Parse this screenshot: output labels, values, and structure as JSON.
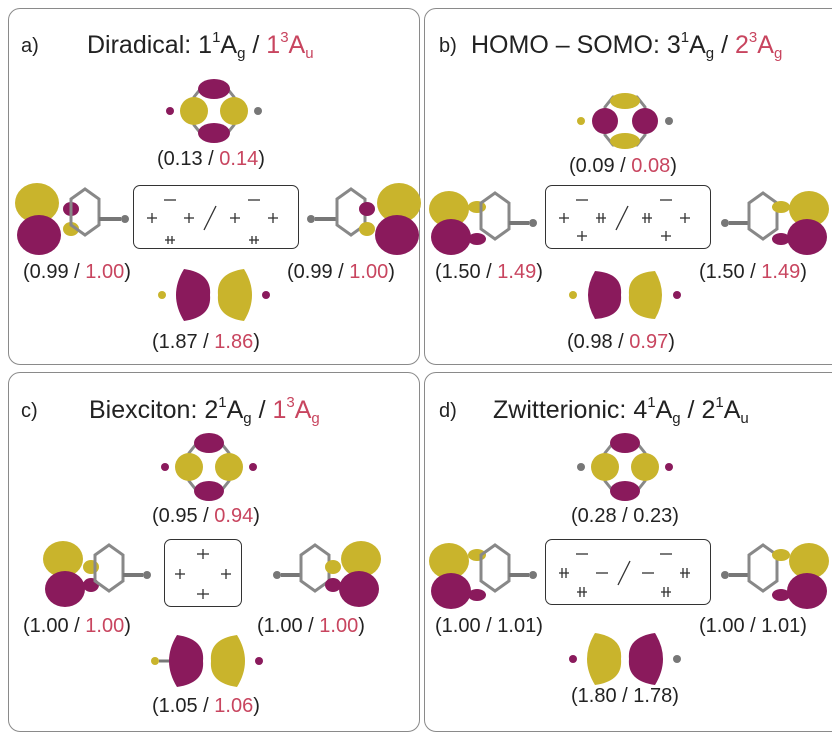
{
  "colors": {
    "gold": "#c9b42c",
    "purple": "#8a1a5c",
    "red": "#c8455f",
    "text": "#222222"
  },
  "panels": [
    {
      "letter": "a)",
      "title_main": "Diradical: ",
      "title_singlet": "1",
      "title_triplet": "1",
      "sym_singlet": "A",
      "sub_singlet": "g",
      "sym_triplet": "A",
      "sub_triplet": "u",
      "top": {
        "v1": "0.13",
        "v2": "0.14"
      },
      "left": {
        "v1": "0.99",
        "v2": "1.00"
      },
      "right": {
        "v1": "0.99",
        "v2": "1.00"
      },
      "bottom": {
        "v1": "1.87",
        "v2": "1.86"
      }
    },
    {
      "letter": "b)",
      "title_main": "HOMO – SOMO: ",
      "title_singlet": "3",
      "title_triplet": "2",
      "sym_singlet": "A",
      "sub_singlet": "g",
      "sym_triplet": "A",
      "sub_triplet": "g",
      "top": {
        "v1": "0.09",
        "v2": "0.08"
      },
      "left": {
        "v1": "1.50",
        "v2": "1.49"
      },
      "right": {
        "v1": "1.50",
        "v2": "1.49"
      },
      "bottom": {
        "v1": "0.98",
        "v2": "0.97"
      }
    },
    {
      "letter": "c)",
      "title_main": "Biexciton: ",
      "title_singlet": "2",
      "title_triplet": "1",
      "sym_singlet": "A",
      "sub_singlet": "g",
      "sym_triplet": "A",
      "sub_triplet": "g",
      "top": {
        "v1": "0.95",
        "v2": "0.94"
      },
      "left": {
        "v1": "1.00",
        "v2": "1.00"
      },
      "right": {
        "v1": "1.00",
        "v2": "1.00"
      },
      "bottom": {
        "v1": "1.05",
        "v2": "1.06"
      }
    },
    {
      "letter": "d)",
      "title_main": "Zwitterionic: ",
      "title_singlet": "4",
      "title_triplet": "2",
      "sym_singlet": "A",
      "sub_singlet": "g",
      "sym_triplet": "A",
      "sub_triplet": "u",
      "top": {
        "v1": "0.28",
        "v2": "0.23"
      },
      "left": {
        "v1": "1.00",
        "v2": "1.01"
      },
      "right": {
        "v1": "1.00",
        "v2": "1.01"
      },
      "bottom": {
        "v1": "1.80",
        "v2": "1.78"
      }
    }
  ],
  "spin": {
    "singlet": "1",
    "triplet": "3",
    "slash": "/"
  }
}
